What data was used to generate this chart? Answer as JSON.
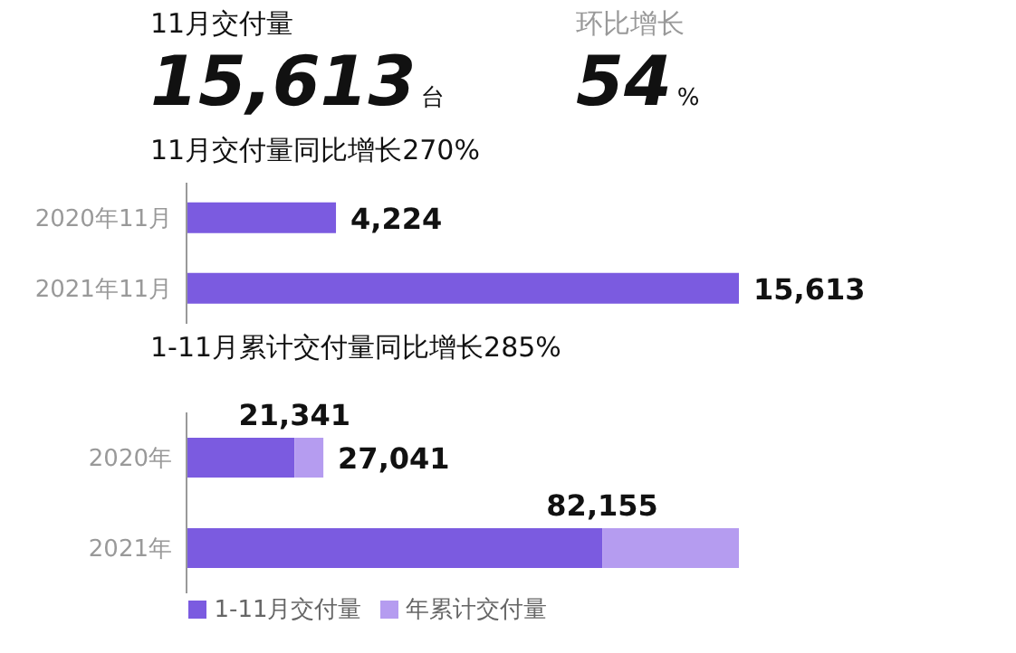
{
  "chart_data": [
    {
      "type": "other",
      "annotations": [
        "11月交付量",
        "15,613",
        "台",
        "环比增长",
        "54",
        "%"
      ]
    },
    {
      "type": "bar",
      "orientation": "horizontal",
      "title": "11月交付量同比增长270%",
      "categories": [
        "2020年11月",
        "2021年11月"
      ],
      "values": [
        4224,
        15613
      ],
      "value_labels": [
        "4,224",
        "15,613"
      ],
      "color": "#7b5be0"
    },
    {
      "type": "bar",
      "orientation": "horizontal",
      "stacked": true,
      "title": "1-11月累计交付量同比增长285%",
      "categories": [
        "2020年",
        "2021年"
      ],
      "legend": "bottom",
      "totals": [
        "27,041",
        null
      ],
      "series": [
        {
          "name": "1-11月交付量",
          "color": "#7b5be0",
          "values": [
            21341,
            82155
          ],
          "value_labels": [
            "21,341",
            "82,155"
          ]
        },
        {
          "name": "年累计交付量",
          "color": "#b59cf0",
          "values": [
            5700,
            27000
          ]
        }
      ]
    }
  ]
}
